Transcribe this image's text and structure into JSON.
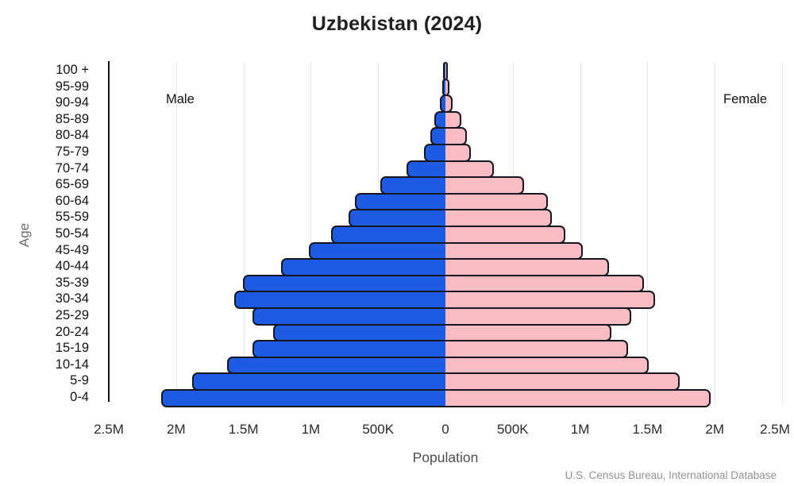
{
  "page": {
    "background": "#ffffff"
  },
  "chart_data": {
    "type": "bar",
    "variant": "population-pyramid",
    "title": "Uzbekistan (2024)",
    "xlabel": "Population",
    "ylabel": "Age",
    "source": "U.S. Census Bureau, International Database",
    "left_side_label": "Male",
    "right_side_label": "Female",
    "grid": true,
    "legend_position": "inside-top",
    "xlim_millions": [
      -2.5,
      2.5
    ],
    "x_ticks": {
      "labels": [
        "2.5M",
        "2M",
        "1.5M",
        "1M",
        "500K",
        "0",
        "500K",
        "1M",
        "1.5M",
        "2M",
        "2.5M"
      ],
      "values_millions": [
        -2.5,
        -2.0,
        -1.5,
        -1.0,
        -0.5,
        0,
        0.5,
        1.0,
        1.5,
        2.0,
        2.5
      ]
    },
    "age_groups_top_to_bottom": [
      "100 +",
      "95-99",
      "90-94",
      "85-89",
      "80-84",
      "75-79",
      "70-74",
      "65-69",
      "60-64",
      "55-59",
      "50-54",
      "45-49",
      "40-44",
      "35-39",
      "30-34",
      "25-29",
      "20-24",
      "15-19",
      "10-14",
      "5-9",
      "0-4"
    ],
    "series": [
      {
        "name": "Male",
        "side": "left",
        "color": "#1e5be3",
        "values_millions": [
          0.004,
          0.012,
          0.03,
          0.07,
          0.1,
          0.145,
          0.28,
          0.47,
          0.66,
          0.705,
          0.84,
          1.0,
          1.21,
          1.49,
          1.555,
          1.42,
          1.27,
          1.42,
          1.61,
          1.87,
          2.1
        ]
      },
      {
        "name": "Female",
        "side": "right",
        "color": "#f9bcc3",
        "values_millions": [
          0.008,
          0.02,
          0.04,
          0.105,
          0.145,
          0.175,
          0.35,
          0.57,
          0.75,
          0.78,
          0.88,
          1.01,
          1.2,
          1.46,
          1.545,
          1.37,
          1.22,
          1.345,
          1.5,
          1.73,
          1.96
        ]
      }
    ],
    "style": {
      "bar_outline_color": "#171722",
      "axis_line_color": "#111111",
      "gridline_color": "#e7e7e7"
    }
  }
}
